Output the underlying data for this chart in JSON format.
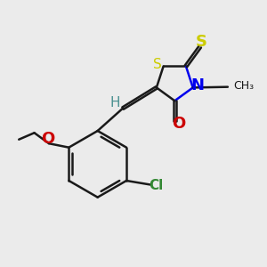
{
  "background_color": "#ebebeb",
  "xlim": [
    0.0,
    1.0
  ],
  "ylim": [
    0.0,
    1.0
  ],
  "bond_color": "#1a1a1a",
  "bond_lw": 1.8,
  "S_thione_color": "#cccc00",
  "S_ring_color": "#999900",
  "N_color": "#0000ee",
  "O_color": "#cc0000",
  "Cl_color": "#338833",
  "H_color": "#4a9090",
  "C_color": "#1a1a1a"
}
